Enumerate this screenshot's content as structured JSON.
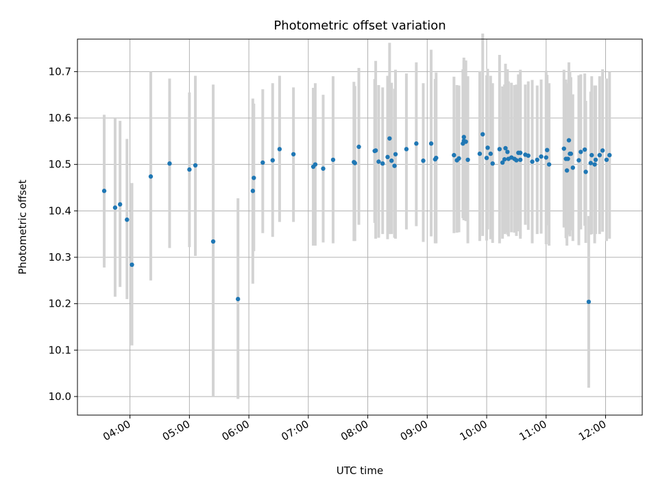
{
  "chart_data": {
    "type": "scatter",
    "title": "Photometric offset variation",
    "xlabel": "UTC time",
    "ylabel": "Photometric offset",
    "xlim": [
      "03:07",
      "12:37"
    ],
    "ylim": [
      9.96,
      10.77
    ],
    "x_ticks": [
      "04:00",
      "05:00",
      "06:00",
      "07:00",
      "08:00",
      "09:00",
      "10:00",
      "11:00",
      "12:00"
    ],
    "y_ticks": [
      10.0,
      10.1,
      10.2,
      10.3,
      10.4,
      10.5,
      10.6,
      10.7
    ],
    "grid": true,
    "colors": {
      "points": "#1f77b4",
      "error_bars": "#d3d3d3",
      "grid": "#b0b0b0"
    },
    "series": [
      {
        "x": [
          "03:34",
          "03:45",
          "03:50",
          "03:57",
          "04:02",
          "04:21",
          "04:40",
          "05:00",
          "05:06",
          "05:24",
          "05:49",
          "06:04",
          "06:05",
          "06:14",
          "06:24",
          "06:31",
          "06:45",
          "07:05",
          "07:07",
          "07:15",
          "07:25",
          "07:46",
          "07:47",
          "07:51",
          "08:07",
          "08:08",
          "08:11",
          "08:15",
          "08:20",
          "08:22",
          "08:24",
          "08:27",
          "08:28",
          "08:39",
          "08:49",
          "08:56",
          "09:04",
          "09:08",
          "09:09",
          "09:27",
          "09:30",
          "09:32",
          "09:36",
          "09:37",
          "09:37",
          "09:39",
          "09:41",
          "09:53",
          "09:56",
          "10:00",
          "10:01",
          "10:04",
          "10:06",
          "10:13",
          "10:16",
          "10:18",
          "10:19",
          "10:21",
          "10:22",
          "10:25",
          "10:28",
          "10:30",
          "10:32",
          "10:34",
          "10:34",
          "10:39",
          "10:42",
          "10:46",
          "10:51",
          "10:55",
          "11:00",
          "11:01",
          "11:03",
          "11:18",
          "11:20",
          "11:21",
          "11:22",
          "11:23",
          "11:24",
          "11:25",
          "11:27",
          "11:33",
          "11:35",
          "11:39",
          "11:40",
          "11:43",
          "11:45",
          "11:46",
          "11:49",
          "11:50",
          "11:54",
          "11:57",
          "12:01",
          "12:04"
        ],
        "y": [
          10.443,
          10.407,
          10.414,
          10.381,
          10.284,
          10.474,
          10.502,
          10.489,
          10.498,
          10.334,
          10.21,
          10.443,
          10.471,
          10.504,
          10.509,
          10.533,
          10.522,
          10.495,
          10.5,
          10.491,
          10.51,
          10.505,
          10.503,
          10.538,
          10.529,
          10.53,
          10.506,
          10.502,
          10.516,
          10.556,
          10.508,
          10.497,
          10.522,
          10.533,
          10.545,
          10.508,
          10.545,
          10.511,
          10.514,
          10.52,
          10.509,
          10.513,
          10.545,
          10.559,
          10.551,
          10.549,
          10.51,
          10.523,
          10.565,
          10.514,
          10.536,
          10.523,
          10.502,
          10.533,
          10.504,
          10.511,
          10.535,
          10.527,
          10.512,
          10.515,
          10.512,
          10.509,
          10.525,
          10.51,
          10.525,
          10.521,
          10.519,
          10.506,
          10.51,
          10.517,
          10.515,
          10.531,
          10.5,
          10.534,
          10.512,
          10.487,
          10.512,
          10.552,
          10.523,
          10.523,
          10.493,
          10.509,
          10.527,
          10.532,
          10.484,
          10.204,
          10.503,
          10.52,
          10.5,
          10.51,
          10.52,
          10.53,
          10.51,
          10.52
        ],
        "yerr_low": [
          0.165,
          0.192,
          0.178,
          0.171,
          0.174,
          0.224,
          0.182,
          0.167,
          0.195,
          0.334,
          0.215,
          0.2,
          0.158,
          0.152,
          0.165,
          0.157,
          0.146,
          0.17,
          0.175,
          0.159,
          0.18,
          0.17,
          0.168,
          0.168,
          0.155,
          0.19,
          0.164,
          0.152,
          0.177,
          0.206,
          0.158,
          0.155,
          0.182,
          0.173,
          0.178,
          0.175,
          0.2,
          0.181,
          0.184,
          0.168,
          0.156,
          0.159,
          0.161,
          0.179,
          0.171,
          0.171,
          0.18,
          0.188,
          0.219,
          0.178,
          0.176,
          0.184,
          0.171,
          0.203,
          0.164,
          0.161,
          0.182,
          0.178,
          0.167,
          0.161,
          0.159,
          0.163,
          0.169,
          0.17,
          0.179,
          0.151,
          0.16,
          0.176,
          0.16,
          0.166,
          0.187,
          0.162,
          0.175,
          0.17,
          0.171,
          0.162,
          0.163,
          0.182,
          0.178,
          0.165,
          0.158,
          0.183,
          0.167,
          0.164,
          0.153,
          0.185,
          0.154,
          0.17,
          0.17,
          0.16,
          0.17,
          0.175,
          0.175,
          0.18
        ],
        "yerr_high": [
          0.164,
          0.193,
          0.18,
          0.174,
          0.176,
          0.226,
          0.183,
          0.166,
          0.193,
          0.338,
          0.217,
          0.199,
          0.16,
          0.158,
          0.166,
          0.158,
          0.144,
          0.17,
          0.175,
          0.159,
          0.18,
          0.173,
          0.166,
          0.17,
          0.155,
          0.193,
          0.165,
          0.164,
          0.175,
          0.206,
          0.168,
          0.166,
          0.182,
          0.163,
          0.175,
          0.167,
          0.202,
          0.173,
          0.184,
          0.169,
          0.162,
          0.157,
          0.16,
          0.171,
          0.173,
          0.175,
          0.18,
          0.178,
          0.217,
          0.178,
          0.17,
          0.168,
          0.173,
          0.203,
          0.164,
          0.161,
          0.182,
          0.178,
          0.167,
          0.161,
          0.159,
          0.163,
          0.169,
          0.17,
          0.179,
          0.151,
          0.16,
          0.176,
          0.16,
          0.166,
          0.187,
          0.162,
          0.175,
          0.17,
          0.171,
          0.162,
          0.163,
          0.168,
          0.178,
          0.165,
          0.158,
          0.183,
          0.167,
          0.164,
          0.153,
          0.185,
          0.154,
          0.17,
          0.17,
          0.16,
          0.17,
          0.175,
          0.175,
          0.18
        ]
      }
    ]
  }
}
